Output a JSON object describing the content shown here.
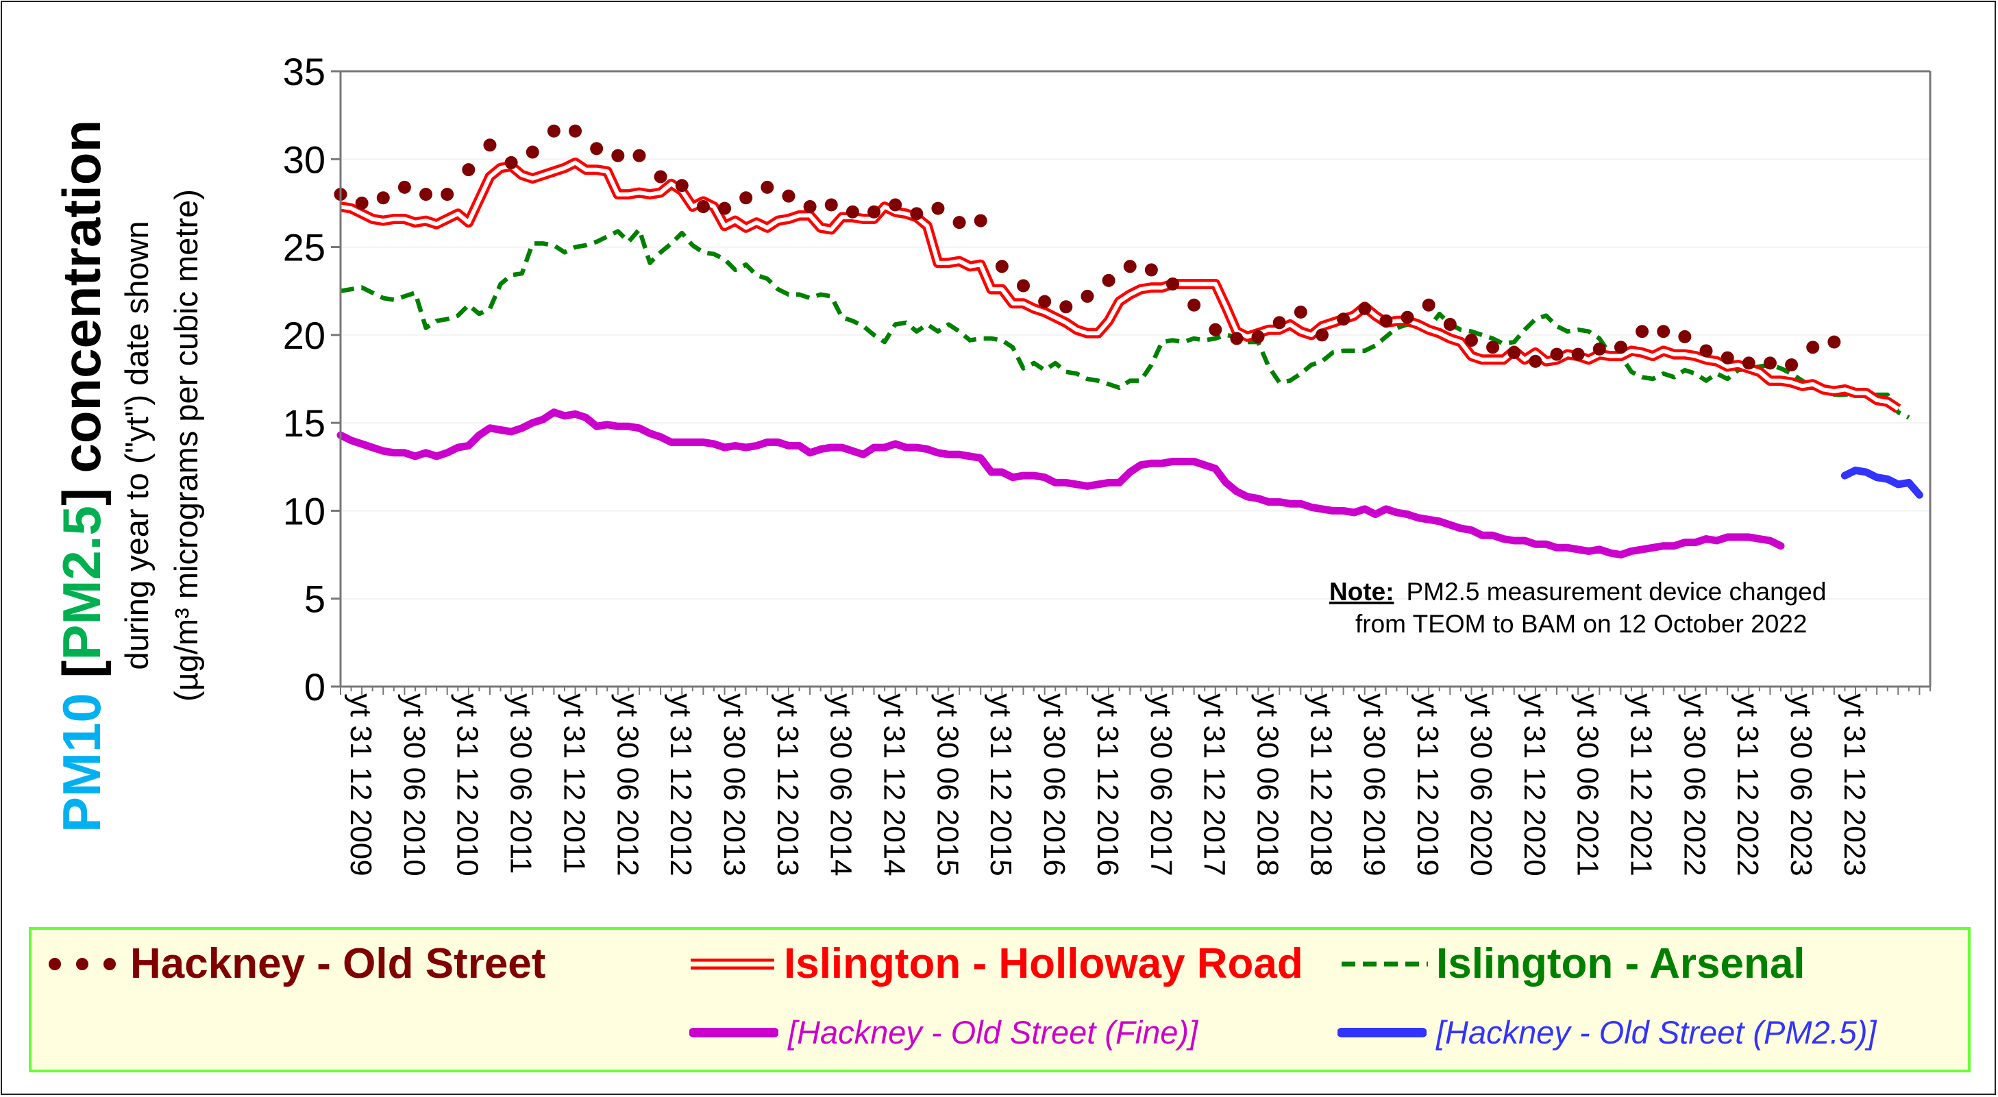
{
  "chart_data": {
    "type": "line",
    "y_axis": {
      "title_parts": [
        {
          "text": "PM10",
          "color": "#00b0f0"
        },
        {
          "text": " [",
          "color": "#000000"
        },
        {
          "text": "PM2.5",
          "color": "#00b050"
        },
        {
          "text": "] concentration",
          "color": "#000000"
        }
      ],
      "subtitle_line1": "during year to (\"yt\") date shown",
      "subtitle_line2": "(µg/m³ micrograms per cubic metre)",
      "ylim": [
        0,
        35
      ],
      "ticks": [
        "0",
        "5",
        "10",
        "15",
        "20",
        "25",
        "30",
        "35"
      ]
    },
    "x_axis": {
      "tick_labels": [
        "yt 31 12 2009",
        "yt 30 06 2010",
        "yt 31 12 2010",
        "yt 30 06 2011",
        "yt 31 12 2011",
        "yt 30 06 2012",
        "yt 31 12 2012",
        "yt 30 06 2013",
        "yt 31 12 2013",
        "yt 30 06 2014",
        "yt 31 12 2014",
        "yt 30 06 2015",
        "yt 31 12 2015",
        "yt 30 06 2016",
        "yt 31 12 2016",
        "yt 30 06 2017",
        "yt 31 12 2017",
        "yt 30 06 2018",
        "yt 31 12 2018",
        "yt 30 06 2019",
        "yt 31 12 2019",
        "yt 30 06 2020",
        "yt 31 12 2020",
        "yt 30 06 2021",
        "yt 31 12 2021",
        "yt 30 06 2022",
        "yt 31 12 2022",
        "yt 30 06 2023",
        "yt 31 12 2023"
      ],
      "first_period": "12/2009",
      "last_period": "05/2024"
    },
    "note_label": "Note:",
    "note_line1": "PM2.5 measurement device changed",
    "note_line2": "from TEOM to BAM on 12 October 2022",
    "series": [
      {
        "name": "Hackney - Old Street",
        "color": "#7f0000",
        "style": "dots",
        "values": [
          28.0,
          null,
          27.5,
          null,
          27.8,
          null,
          28.4,
          null,
          28.0,
          null,
          28.0,
          null,
          29.4,
          null,
          30.8,
          null,
          29.8,
          null,
          30.4,
          null,
          31.6,
          null,
          31.6,
          null,
          30.6,
          null,
          30.2,
          null,
          30.2,
          null,
          29.0,
          null,
          28.5,
          null,
          27.3,
          null,
          27.2,
          null,
          27.8,
          null,
          28.4,
          null,
          27.9,
          null,
          27.3,
          null,
          27.4,
          null,
          27.0,
          null,
          27.0,
          null,
          27.4,
          null,
          26.9,
          null,
          27.2,
          null,
          26.4,
          null,
          26.5,
          null,
          23.9,
          null,
          22.8,
          null,
          21.9,
          null,
          21.6,
          null,
          22.2,
          null,
          23.1,
          null,
          23.9,
          null,
          23.7,
          null,
          22.9,
          null,
          21.7,
          null,
          20.3,
          null,
          19.8,
          null,
          19.9,
          null,
          20.7,
          null,
          21.3,
          null,
          20.0,
          null,
          20.9,
          null,
          21.5,
          null,
          20.8,
          null,
          21.0,
          null,
          21.7,
          null,
          20.6,
          null,
          19.7,
          null,
          19.3,
          null,
          19.0,
          null,
          18.5,
          null,
          18.9,
          null,
          18.9,
          null,
          19.2,
          null,
          19.3,
          null,
          20.2,
          null,
          20.2,
          null,
          19.9,
          null,
          19.1,
          null,
          18.7,
          null,
          18.4,
          null,
          18.4,
          null,
          18.3,
          null,
          19.3,
          null,
          19.6
        ]
      },
      {
        "name": "Islington - Holloway Road",
        "color": "#ff0000",
        "style": "double",
        "values": [
          27.3,
          27.2,
          26.9,
          26.6,
          26.5,
          26.6,
          26.6,
          26.4,
          26.5,
          26.3,
          26.6,
          26.9,
          26.4,
          27.7,
          29.0,
          29.5,
          29.6,
          29.1,
          28.9,
          29.1,
          29.3,
          29.5,
          29.8,
          29.4,
          29.4,
          29.3,
          28.0,
          28.0,
          28.1,
          28.0,
          28.1,
          28.6,
          28.2,
          27.3,
          27.6,
          27.3,
          26.2,
          26.5,
          26.1,
          26.4,
          26.1,
          26.5,
          26.6,
          26.8,
          26.8,
          26.1,
          26.0,
          26.7,
          26.7,
          26.6,
          26.6,
          27.3,
          27.0,
          26.9,
          26.7,
          26.2,
          24.1,
          24.1,
          24.2,
          23.9,
          24.0,
          22.6,
          22.6,
          21.8,
          21.8,
          21.5,
          21.3,
          21.0,
          20.7,
          20.3,
          20.1,
          20.1,
          20.8,
          21.9,
          22.3,
          22.6,
          22.7,
          22.7,
          22.9,
          22.9,
          22.9,
          22.9,
          22.9,
          21.6,
          20.2,
          19.9,
          20.1,
          20.3,
          20.3,
          20.6,
          20.2,
          20.0,
          20.5,
          20.7,
          20.9,
          21.1,
          21.6,
          21.1,
          20.7,
          20.8,
          20.8,
          20.6,
          20.3,
          20.1,
          19.8,
          19.6,
          18.8,
          18.6,
          18.6,
          18.6,
          19.1,
          18.6,
          19.0,
          18.5,
          18.6,
          18.9,
          18.8,
          18.6,
          18.9,
          18.8,
          18.8,
          19.1,
          19.0,
          18.8,
          19.1,
          18.9,
          18.9,
          18.8,
          18.6,
          18.5,
          18.2,
          18.3,
          18.1,
          17.9,
          17.4,
          17.4,
          17.3,
          17.1,
          17.2,
          16.9,
          16.8,
          16.9,
          16.7,
          16.7,
          16.3,
          16.2,
          15.8
        ]
      },
      {
        "name": "Islington - Arsenal",
        "color": "#008000",
        "style": "dashed",
        "values": [
          22.5,
          22.6,
          22.7,
          22.4,
          22.1,
          22.0,
          22.2,
          22.4,
          20.4,
          20.8,
          20.9,
          21.1,
          21.7,
          21.2,
          21.5,
          22.9,
          23.4,
          23.5,
          25.2,
          25.2,
          25.1,
          24.7,
          25.0,
          25.1,
          25.3,
          25.6,
          25.9,
          25.3,
          26.0,
          24.1,
          24.7,
          25.2,
          25.8,
          25.1,
          24.7,
          24.6,
          24.3,
          23.7,
          24.0,
          23.4,
          23.2,
          22.6,
          22.3,
          22.3,
          22.1,
          22.3,
          22.2,
          21.0,
          20.8,
          20.5,
          20.0,
          19.6,
          20.6,
          20.7,
          20.2,
          20.6,
          20.2,
          20.6,
          20.2,
          19.7,
          19.8,
          19.8,
          19.7,
          19.3,
          18.1,
          18.4,
          18.0,
          18.4,
          17.9,
          17.8,
          17.5,
          17.4,
          17.2,
          17.0,
          17.4,
          17.4,
          18.3,
          19.6,
          19.7,
          19.6,
          19.8,
          19.7,
          19.8,
          20.0,
          19.9,
          19.6,
          19.6,
          18.2,
          17.3,
          17.4,
          17.8,
          18.3,
          18.5,
          19.0,
          19.1,
          19.1,
          19.1,
          19.4,
          19.9,
          20.4,
          20.6,
          20.5,
          20.4,
          21.2,
          20.6,
          20.3,
          20.2,
          20.0,
          19.8,
          19.5,
          19.6,
          20.3,
          20.9,
          21.1,
          20.5,
          20.2,
          20.3,
          20.2,
          19.8,
          18.9,
          18.8,
          17.9,
          17.6,
          17.5,
          17.8,
          17.6,
          18.0,
          17.8,
          17.4,
          17.8,
          17.5,
          18.0,
          18.1,
          18.2,
          18.3,
          18.1,
          17.8,
          17.4,
          17.1,
          16.8,
          16.6,
          16.6,
          16.7,
          16.5,
          16.6,
          16.6,
          15.6,
          15.3
        ]
      },
      {
        "name": "[Hackney - Old Street (Fine)]",
        "color": "#cc00cc",
        "style": "thick",
        "values": [
          14.3,
          14.0,
          13.8,
          13.6,
          13.4,
          13.3,
          13.3,
          13.1,
          13.3,
          13.1,
          13.3,
          13.6,
          13.7,
          14.3,
          14.7,
          14.6,
          14.5,
          14.7,
          15.0,
          15.2,
          15.6,
          15.4,
          15.5,
          15.3,
          14.8,
          14.9,
          14.8,
          14.8,
          14.7,
          14.4,
          14.2,
          13.9,
          13.9,
          13.9,
          13.9,
          13.8,
          13.6,
          13.7,
          13.6,
          13.7,
          13.9,
          13.9,
          13.7,
          13.7,
          13.3,
          13.5,
          13.6,
          13.6,
          13.4,
          13.2,
          13.6,
          13.6,
          13.8,
          13.6,
          13.6,
          13.5,
          13.3,
          13.2,
          13.2,
          13.1,
          13.0,
          12.2,
          12.2,
          11.9,
          12.0,
          12.0,
          11.9,
          11.6,
          11.6,
          11.5,
          11.4,
          11.5,
          11.6,
          11.6,
          12.2,
          12.6,
          12.7,
          12.7,
          12.8,
          12.8,
          12.8,
          12.6,
          12.4,
          11.6,
          11.1,
          10.8,
          10.7,
          10.5,
          10.5,
          10.4,
          10.4,
          10.2,
          10.1,
          10.0,
          10.0,
          9.9,
          10.1,
          9.8,
          10.1,
          9.9,
          9.8,
          9.6,
          9.5,
          9.4,
          9.2,
          9.0,
          8.9,
          8.6,
          8.6,
          8.4,
          8.3,
          8.3,
          8.1,
          8.1,
          7.9,
          7.9,
          7.8,
          7.7,
          7.8,
          7.6,
          7.5,
          7.7,
          7.8,
          7.9,
          8.0,
          8.0,
          8.2,
          8.2,
          8.4,
          8.3,
          8.5,
          8.5,
          8.5,
          8.4,
          8.3,
          8.0
        ]
      },
      {
        "name": "[Hackney - Old Street (PM2.5)]",
        "color": "#3333ff",
        "style": "thick",
        "start_index": 141,
        "values": [
          12.0,
          12.3,
          12.2,
          11.9,
          11.8,
          11.5,
          11.6,
          10.9
        ]
      }
    ],
    "legend": {
      "placement": "bottom",
      "background": "#ffffe0",
      "border": "#66ff33"
    }
  }
}
